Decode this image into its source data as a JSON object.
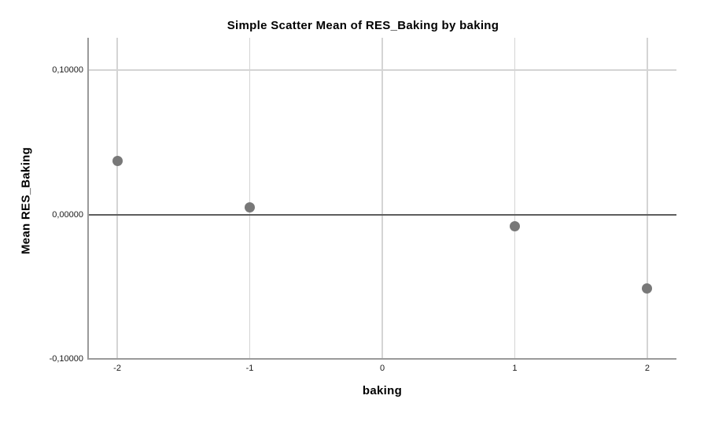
{
  "chart_data": {
    "type": "scatter",
    "title": "Simple Scatter Mean of RES_Baking by baking",
    "xlabel": "baking",
    "ylabel": "Mean RES_Baking",
    "xlim": [
      -2.22,
      2.22
    ],
    "ylim": [
      -0.1,
      0.1224
    ],
    "x_ticks": [
      {
        "value": -2,
        "label": "-2"
      },
      {
        "value": -1,
        "label": "-1"
      },
      {
        "value": 0,
        "label": "0"
      },
      {
        "value": 1,
        "label": "1"
      },
      {
        "value": 2,
        "label": "2"
      }
    ],
    "y_ticks": [
      {
        "value": 0.1,
        "label": "0,10000"
      },
      {
        "value": 0.0,
        "label": "0,00000"
      },
      {
        "value": -0.1,
        "label": "-0,10000"
      }
    ],
    "grid_x_values": [
      -2,
      -1,
      0,
      1,
      2
    ],
    "grid_y_values": [
      0.1
    ],
    "reference_line_y": 0,
    "points": [
      {
        "x": -2,
        "y": 0.037
      },
      {
        "x": -1,
        "y": 0.005
      },
      {
        "x": 1,
        "y": -0.008
      },
      {
        "x": 2,
        "y": -0.051
      }
    ],
    "legend": "none",
    "grid": "on",
    "colors": {
      "marker": "#787878",
      "gridline": "#d4d4d4",
      "axis_line": "#9a9a9a",
      "reference_line": "#5e5e5e",
      "text": "#000000",
      "tick_text": "#1a1a1a",
      "background": "#ffffff"
    }
  }
}
